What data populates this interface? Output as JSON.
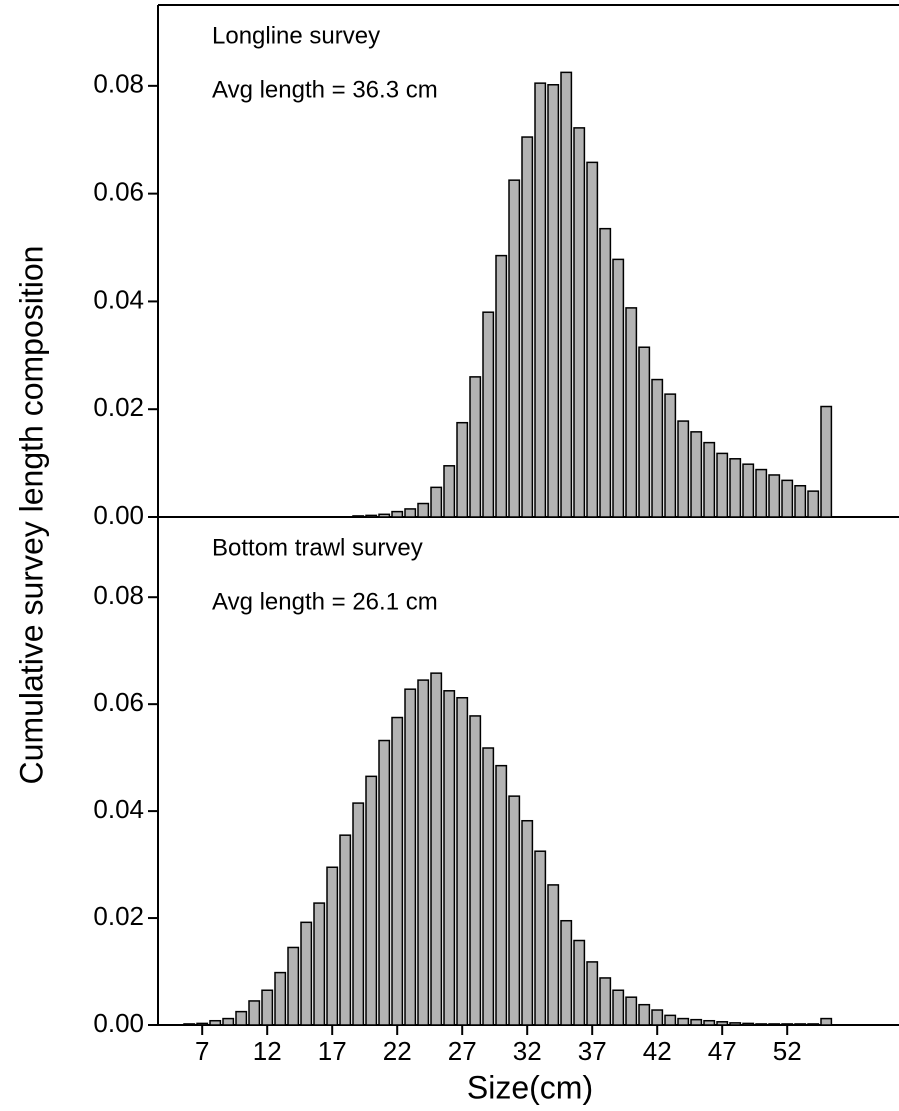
{
  "chart_data": [
    {
      "type": "bar",
      "annotations": [
        "Longline survey",
        "Avg length = 36.3 cm"
      ],
      "y_label": "Cumulative survey length composition",
      "color": "#b3b3b3",
      "x": [
        6,
        7,
        8,
        9,
        10,
        11,
        12,
        13,
        14,
        15,
        16,
        17,
        18,
        19,
        20,
        21,
        22,
        23,
        24,
        25,
        26,
        27,
        28,
        29,
        30,
        31,
        32,
        33,
        34,
        35,
        36,
        37,
        38,
        39,
        40,
        41,
        42,
        43,
        44,
        45,
        46,
        47,
        48,
        49,
        50,
        51,
        52,
        53,
        54,
        55
      ],
      "values": [
        0,
        0,
        0,
        0,
        0,
        0,
        0,
        0,
        0,
        0,
        0,
        0,
        0,
        0.0002,
        0.0003,
        0.0005,
        0.001,
        0.0015,
        0.0025,
        0.0055,
        0.0095,
        0.0175,
        0.026,
        0.038,
        0.0485,
        0.0625,
        0.0705,
        0.0805,
        0.0802,
        0.0825,
        0.0722,
        0.0658,
        0.0535,
        0.0478,
        0.0388,
        0.0315,
        0.0255,
        0.0228,
        0.0178,
        0.0158,
        0.0138,
        0.0118,
        0.0108,
        0.0098,
        0.0088,
        0.0078,
        0.0068,
        0.0058,
        0.0048,
        0.0205
      ],
      "xlim": [
        3.6,
        60.6
      ],
      "ylim": [
        0,
        0.095
      ],
      "yticks": [
        {
          "value": 0,
          "label": "0.00"
        },
        {
          "value": 0.02,
          "label": "0.02"
        },
        {
          "value": 0.04,
          "label": "0.04"
        },
        {
          "value": 0.06,
          "label": "0.06"
        },
        {
          "value": 0.08,
          "label": "0.08"
        }
      ]
    },
    {
      "type": "bar",
      "annotations": [
        "Bottom trawl survey",
        "Avg length = 26.1 cm"
      ],
      "x_label": "Size(cm)",
      "color": "#b3b3b3",
      "x": [
        6,
        7,
        8,
        9,
        10,
        11,
        12,
        13,
        14,
        15,
        16,
        17,
        18,
        19,
        20,
        21,
        22,
        23,
        24,
        25,
        26,
        27,
        28,
        29,
        30,
        31,
        32,
        33,
        34,
        35,
        36,
        37,
        38,
        39,
        40,
        41,
        42,
        43,
        44,
        45,
        46,
        47,
        48,
        49,
        50,
        51,
        52,
        53,
        54,
        55
      ],
      "values": [
        0.0002,
        0.0003,
        0.0008,
        0.0012,
        0.0025,
        0.0045,
        0.0065,
        0.0098,
        0.0145,
        0.0192,
        0.0228,
        0.0295,
        0.0355,
        0.0415,
        0.0465,
        0.0532,
        0.0575,
        0.0628,
        0.0645,
        0.0658,
        0.0625,
        0.0612,
        0.0578,
        0.0518,
        0.0485,
        0.0428,
        0.0382,
        0.0325,
        0.0262,
        0.0195,
        0.0158,
        0.0118,
        0.0088,
        0.0065,
        0.0052,
        0.0038,
        0.0028,
        0.0018,
        0.0012,
        0.001,
        0.0008,
        0.0006,
        0.0004,
        0.0003,
        0.0002,
        0.0002,
        0.0002,
        0.0002,
        0.0002,
        0.0012
      ],
      "xlim": [
        3.6,
        60.6
      ],
      "ylim": [
        0,
        0.095
      ],
      "xticks": [
        7,
        12,
        17,
        22,
        27,
        32,
        37,
        42,
        47,
        52
      ],
      "yticks": [
        {
          "value": 0,
          "label": "0.00"
        },
        {
          "value": 0.02,
          "label": "0.02"
        },
        {
          "value": 0.04,
          "label": "0.04"
        },
        {
          "value": 0.06,
          "label": "0.06"
        },
        {
          "value": 0.08,
          "label": "0.08"
        }
      ]
    }
  ]
}
